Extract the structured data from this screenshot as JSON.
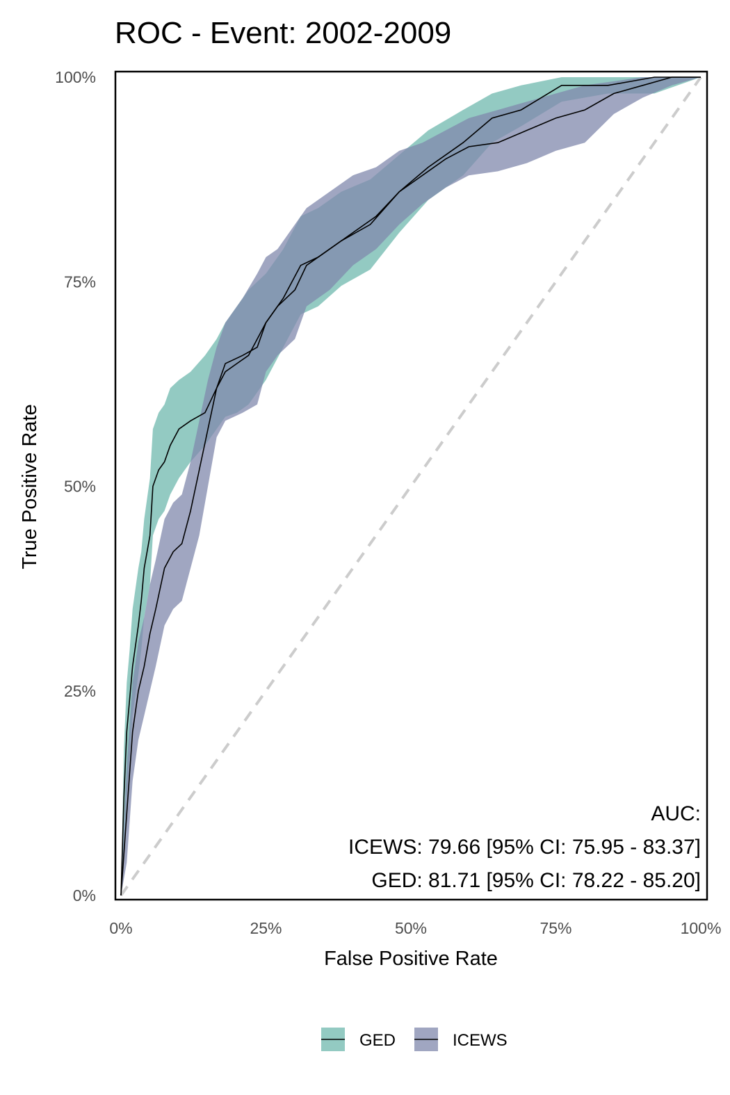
{
  "chart_data": {
    "type": "line",
    "title": "ROC - Event: 2002-2009",
    "xlabel": "False Positive Rate",
    "ylabel": "True Positive Rate",
    "xlim": [
      0,
      1
    ],
    "ylim": [
      0,
      1
    ],
    "x_ticks": [
      0,
      0.25,
      0.5,
      0.75,
      1
    ],
    "y_ticks": [
      0,
      0.25,
      0.5,
      0.75,
      1
    ],
    "x_tick_labels": [
      "0%",
      "25%",
      "50%",
      "75%",
      "100%"
    ],
    "y_tick_labels": [
      "0%",
      "25%",
      "50%",
      "75%",
      "100%"
    ],
    "grid": false,
    "legend_position": "bottom",
    "reference_line": {
      "style": "dashed",
      "color": "#cccccc",
      "from": [
        0,
        0
      ],
      "to": [
        1,
        1
      ]
    },
    "annotation": {
      "header": "AUC:",
      "lines": [
        "ICEWS: 79.66 [95% CI: 75.95 - 83.37]",
        "GED: 81.71 [95% CI: 78.22 - 85.20]"
      ]
    },
    "series": [
      {
        "name": "GED",
        "fill_color": "#6fb8ad",
        "line_color": "#000000",
        "x": [
          0,
          0.005,
          0.01,
          0.015,
          0.02,
          0.03,
          0.035,
          0.04,
          0.05,
          0.055,
          0.065,
          0.075,
          0.085,
          0.1,
          0.12,
          0.145,
          0.165,
          0.18,
          0.2,
          0.22,
          0.25,
          0.28,
          0.31,
          0.34,
          0.38,
          0.43,
          0.48,
          0.53,
          0.59,
          0.64,
          0.69,
          0.76,
          0.84,
          0.92,
          1
        ],
        "y": [
          0,
          0.12,
          0.2,
          0.24,
          0.28,
          0.33,
          0.36,
          0.4,
          0.44,
          0.5,
          0.52,
          0.53,
          0.55,
          0.57,
          0.58,
          0.59,
          0.62,
          0.64,
          0.65,
          0.66,
          0.7,
          0.73,
          0.77,
          0.78,
          0.8,
          0.82,
          0.86,
          0.89,
          0.92,
          0.95,
          0.96,
          0.99,
          0.99,
          1.0,
          1.0
        ],
        "lower": [
          0,
          0.05,
          0.12,
          0.17,
          0.22,
          0.27,
          0.3,
          0.34,
          0.38,
          0.44,
          0.46,
          0.47,
          0.49,
          0.51,
          0.53,
          0.55,
          0.57,
          0.585,
          0.59,
          0.6,
          0.63,
          0.67,
          0.71,
          0.72,
          0.745,
          0.765,
          0.81,
          0.85,
          0.88,
          0.92,
          0.94,
          0.97,
          0.98,
          0.98,
          1.0
        ],
        "upper": [
          0,
          0.18,
          0.26,
          0.3,
          0.35,
          0.4,
          0.42,
          0.46,
          0.51,
          0.57,
          0.59,
          0.6,
          0.62,
          0.63,
          0.64,
          0.66,
          0.68,
          0.7,
          0.72,
          0.74,
          0.76,
          0.79,
          0.83,
          0.84,
          0.86,
          0.875,
          0.905,
          0.935,
          0.96,
          0.98,
          0.99,
          1.0,
          1.0,
          1.0,
          1.0
        ]
      },
      {
        "name": "ICEWS",
        "fill_color": "#8088ac",
        "line_color": "#000000",
        "x": [
          0,
          0.01,
          0.02,
          0.03,
          0.04,
          0.05,
          0.06,
          0.075,
          0.09,
          0.105,
          0.12,
          0.135,
          0.15,
          0.165,
          0.18,
          0.21,
          0.235,
          0.25,
          0.27,
          0.3,
          0.32,
          0.36,
          0.4,
          0.44,
          0.48,
          0.52,
          0.56,
          0.6,
          0.65,
          0.7,
          0.75,
          0.8,
          0.85,
          0.9,
          0.95,
          1
        ],
        "y": [
          0,
          0.1,
          0.2,
          0.25,
          0.28,
          0.32,
          0.35,
          0.4,
          0.42,
          0.43,
          0.47,
          0.52,
          0.57,
          0.62,
          0.65,
          0.66,
          0.67,
          0.7,
          0.72,
          0.74,
          0.77,
          0.79,
          0.81,
          0.83,
          0.86,
          0.88,
          0.9,
          0.915,
          0.92,
          0.935,
          0.95,
          0.96,
          0.98,
          0.99,
          1.0,
          1.0
        ],
        "lower": [
          0,
          0.04,
          0.14,
          0.19,
          0.22,
          0.25,
          0.28,
          0.33,
          0.35,
          0.36,
          0.4,
          0.44,
          0.5,
          0.56,
          0.58,
          0.59,
          0.6,
          0.64,
          0.66,
          0.68,
          0.72,
          0.74,
          0.77,
          0.79,
          0.82,
          0.845,
          0.865,
          0.88,
          0.885,
          0.895,
          0.91,
          0.92,
          0.955,
          0.975,
          0.99,
          1.0
        ],
        "upper": [
          0,
          0.16,
          0.26,
          0.31,
          0.34,
          0.38,
          0.41,
          0.46,
          0.48,
          0.49,
          0.53,
          0.58,
          0.63,
          0.67,
          0.7,
          0.73,
          0.76,
          0.78,
          0.79,
          0.82,
          0.84,
          0.86,
          0.88,
          0.89,
          0.91,
          0.92,
          0.935,
          0.95,
          0.96,
          0.97,
          0.98,
          0.99,
          0.995,
          1.0,
          1.0,
          1.0
        ]
      }
    ]
  }
}
